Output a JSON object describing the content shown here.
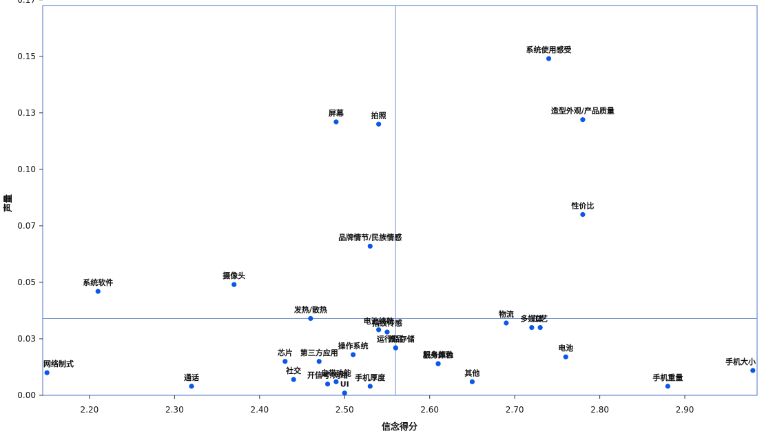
{
  "chart_data": {
    "type": "scatter",
    "title": "",
    "xlabel": "信念得分",
    "ylabel": "声量",
    "xlim": [
      2.145,
      2.985
    ],
    "ylim": [
      0.0,
      0.1725
    ],
    "x_ticks": [
      "2.20",
      "2.30",
      "2.40",
      "2.50",
      "2.60",
      "2.70",
      "2.80",
      "2.90"
    ],
    "x_tick_values": [
      2.2,
      2.3,
      2.4,
      2.5,
      2.6,
      2.7,
      2.8,
      2.9
    ],
    "y_ticks": [
      "0.00",
      "0.03",
      "0.05",
      "0.07",
      "0.10",
      "0.13",
      "0.15",
      "0.17"
    ],
    "y_tick_values": [
      0.0,
      0.025,
      0.05,
      0.075,
      0.1,
      0.125,
      0.15,
      0.175
    ],
    "reference_lines": {
      "x": 2.56,
      "y": 0.034
    },
    "grid": false,
    "legend": "none",
    "colors": {
      "point": "#0a57e8",
      "axis": "#4a72c4",
      "reference": "#7a95cf"
    },
    "points": [
      {
        "label": "系统使用感受",
        "x": 2.74,
        "y": 0.149
      },
      {
        "label": "造型外观/产品质量",
        "x": 2.78,
        "y": 0.122
      },
      {
        "label": "屏幕",
        "x": 2.49,
        "y": 0.121
      },
      {
        "label": "拍照",
        "x": 2.54,
        "y": 0.12
      },
      {
        "label": "性价比",
        "x": 2.78,
        "y": 0.08
      },
      {
        "label": "品牌情节/民族情感",
        "x": 2.53,
        "y": 0.066
      },
      {
        "label": "系统软件",
        "x": 2.21,
        "y": 0.046
      },
      {
        "label": "摄像头",
        "x": 2.37,
        "y": 0.049
      },
      {
        "label": "发热/散热",
        "x": 2.46,
        "y": 0.034
      },
      {
        "label": "指纹传感",
        "x": 2.55,
        "y": 0.028
      },
      {
        "label": "物流",
        "x": 2.69,
        "y": 0.032
      },
      {
        "label": "多媒体",
        "x": 2.72,
        "y": 0.03
      },
      {
        "label": "工艺",
        "x": 2.73,
        "y": 0.03
      },
      {
        "label": "电池续航",
        "x": 2.54,
        "y": 0.029
      },
      {
        "label": "运行及存储",
        "x": 2.56,
        "y": 0.021
      },
      {
        "label": "赠品",
        "x": 2.56,
        "y": 0.021
      },
      {
        "label": "操作系统",
        "x": 2.51,
        "y": 0.018
      },
      {
        "label": "机身颜色",
        "x": 2.61,
        "y": 0.014
      },
      {
        "label": "服务体验",
        "x": 2.61,
        "y": 0.014
      },
      {
        "label": "电池",
        "x": 2.76,
        "y": 0.017
      },
      {
        "label": "芯片",
        "x": 2.43,
        "y": 0.015
      },
      {
        "label": "第三方应用",
        "x": 2.47,
        "y": 0.015
      },
      {
        "label": "网络制式",
        "x": 2.15,
        "y": 0.01
      },
      {
        "label": "社交",
        "x": 2.44,
        "y": 0.007
      },
      {
        "label": "开信号/网络",
        "x": 2.48,
        "y": 0.005
      },
      {
        "label": "自带功能",
        "x": 2.49,
        "y": 0.006
      },
      {
        "label": "手机厚度",
        "x": 2.53,
        "y": 0.004
      },
      {
        "label": "UI",
        "x": 2.5,
        "y": 0.001
      },
      {
        "label": "通话",
        "x": 2.32,
        "y": 0.004
      },
      {
        "label": "其他",
        "x": 2.65,
        "y": 0.006
      },
      {
        "label": "手机重量",
        "x": 2.88,
        "y": 0.004
      },
      {
        "label": "手机大小",
        "x": 2.98,
        "y": 0.011
      }
    ]
  }
}
